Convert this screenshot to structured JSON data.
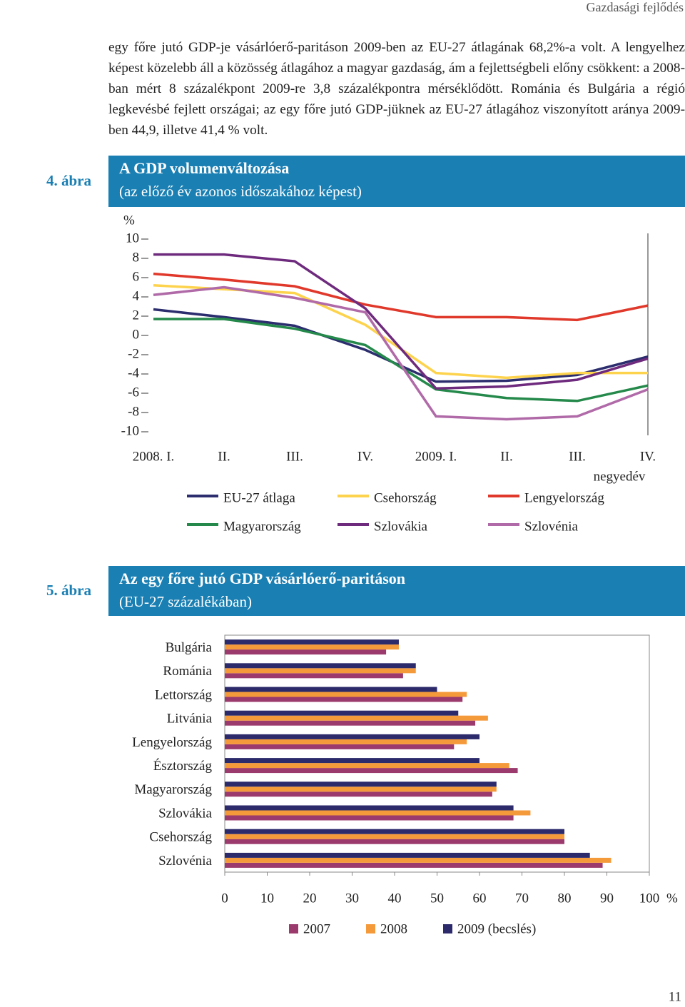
{
  "header": {
    "section": "Gazdasági fejlődés"
  },
  "body": {
    "paragraph": "egy főre jutó GDP-je vásárlóerő-paritáson 2009-ben az EU-27 átlagának 68,2%-a volt. A lengyelhez képest közelebb áll a közösség átlagához a magyar gazdaság, ám a fejlettségbeli előny csökkent: a 2008-ban mért 8 százalékpont 2009-re 3,8 százalékpontra mérséklődött. Románia és Bulgária a régió legkevésbé fejlett országai; az egy főre jutó GDP-jüknek az EU-27 átlagához viszonyított aránya 2009-ben 44,9, illetve 41,4 % volt."
  },
  "figures": [
    {
      "number": "4. ábra"
    },
    {
      "number": "5. ábra"
    }
  ],
  "chart_data": [
    {
      "type": "line",
      "title": "A GDP volumenváltozása",
      "subtitle": "(az előző év azonos időszakához képest)",
      "y_label": "%",
      "x_label": "negyedév",
      "categories": [
        "2008. I.",
        "II.",
        "III.",
        "IV.",
        "2009. I.",
        "II.",
        "III.",
        "IV."
      ],
      "ylim": [
        -10,
        10
      ],
      "yticks": [
        -10,
        -8,
        -6,
        -4,
        -2,
        0,
        2,
        4,
        6,
        8,
        10
      ],
      "series": [
        {
          "name": "EU-27 átlaga",
          "color": "#2b2d6e",
          "values": [
            2.7,
            1.9,
            1.0,
            -1.5,
            -4.8,
            -4.7,
            -4.1,
            -2.2
          ]
        },
        {
          "name": "Csehország",
          "color": "#fdd34d",
          "values": [
            5.2,
            4.8,
            4.4,
            1.1,
            -3.9,
            -4.4,
            -3.9,
            -3.9
          ]
        },
        {
          "name": "Lengyelország",
          "color": "#e0392b",
          "values": [
            6.4,
            5.8,
            5.1,
            3.2,
            1.9,
            1.9,
            1.6,
            3.1
          ]
        },
        {
          "name": "Magyarország",
          "color": "#24894a",
          "values": [
            1.7,
            1.7,
            0.7,
            -1.0,
            -5.6,
            -6.5,
            -6.8,
            -5.2
          ]
        },
        {
          "name": "Szlovákia",
          "color": "#6e2a7d",
          "values": [
            8.4,
            8.4,
            7.7,
            2.8,
            -5.5,
            -5.3,
            -4.6,
            -2.4
          ]
        },
        {
          "name": "Szlovénia",
          "color": "#b06aa8",
          "values": [
            4.2,
            5.0,
            3.9,
            2.4,
            -8.4,
            -8.7,
            -8.4,
            -5.6
          ]
        }
      ]
    },
    {
      "type": "hbar",
      "title": "Az egy főre jutó GDP vásárlóerő-paritáson",
      "subtitle": "(EU-27 százalékában)",
      "x_label": "%",
      "categories": [
        "Bulgária",
        "Románia",
        "Lettország",
        "Litvánia",
        "Lengyelország",
        "Észtország",
        "Magyarország",
        "Szlovákia",
        "Csehország",
        "Szlovénia"
      ],
      "xlim": [
        0,
        100
      ],
      "xticks": [
        0,
        10,
        20,
        30,
        40,
        50,
        60,
        70,
        80,
        90,
        100
      ],
      "series": [
        {
          "name": "2007",
          "color": "#9b3a6c",
          "values": [
            38,
            42,
            56,
            59,
            54,
            69,
            63,
            68,
            80,
            89
          ]
        },
        {
          "name": "2008",
          "color": "#f59a3b",
          "values": [
            41,
            45,
            57,
            62,
            57,
            67,
            64,
            72,
            80,
            91
          ]
        },
        {
          "name": "2009 (becslés)",
          "color": "#2c2a6b",
          "values": [
            41,
            45,
            50,
            55,
            60,
            60,
            64,
            68,
            80,
            86
          ]
        }
      ]
    }
  ],
  "footer": {
    "page_number": "11"
  }
}
